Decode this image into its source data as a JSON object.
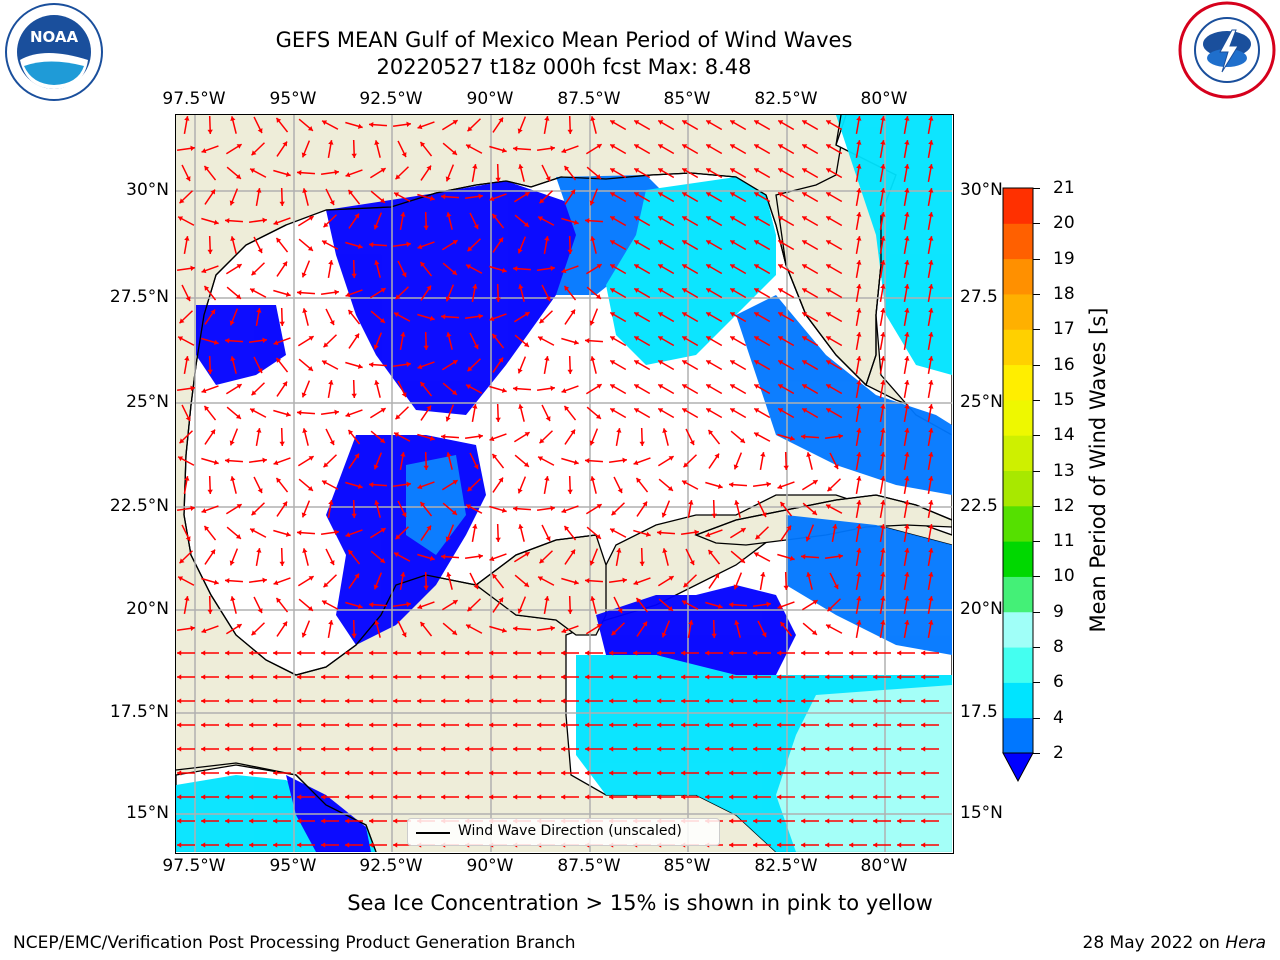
{
  "header": {
    "title_line1": "GEFS MEAN Gulf of Mexico Mean Period of Wind Waves",
    "title_line2": "20220527 t18z 000h fcst   Max: 8.48"
  },
  "logos": {
    "left": {
      "name": "NOAA",
      "ring_text": "NATIONAL OCEANIC AND ATMOSPHERIC ADMINISTRATION · U.S. DEPARTMENT OF COMMERCE",
      "colors": [
        "#1a4f9c",
        "#ffffff"
      ]
    },
    "right": {
      "name": "National Weather Service",
      "ring_text": "NATIONAL WEATHER SERVICE",
      "colors": [
        "#d6001c",
        "#1a4f9c"
      ]
    }
  },
  "map": {
    "lon_ticks": [
      "97.5°W",
      "95°W",
      "92.5°W",
      "90°W",
      "87.5°W",
      "85°W",
      "82.5°W",
      "80°W"
    ],
    "lat_ticks_left": [
      "30°N",
      "27.5°N",
      "25°N",
      "22.5°N",
      "20°N",
      "17.5°N",
      "15°N"
    ],
    "lat_ticks_right": [
      "30°N",
      "27.5",
      "25°N",
      "22.5",
      "20°N",
      "17.5",
      "15°N"
    ],
    "colors": {
      "land": "#eeedd9",
      "grid": "#b0b0b0",
      "coast": "#000000",
      "arrow": "#ff0000"
    },
    "legend_label": "Wind Wave Direction (unscaled)"
  },
  "colorbar": {
    "label": "Mean Period of Wind Waves [s]",
    "ticks": [
      "2",
      "4",
      "6",
      "8",
      "9",
      "10",
      "11",
      "12",
      "13",
      "14",
      "15",
      "16",
      "17",
      "18",
      "19",
      "20",
      "21"
    ],
    "colors": [
      "#0077ff",
      "#00e4ff",
      "#44fff0",
      "#a0fff8",
      "#44f077",
      "#00d800",
      "#55e000",
      "#a8e800",
      "#cef000",
      "#eef800",
      "#ffee00",
      "#ffd000",
      "#ffb000",
      "#ff9000",
      "#ff6000",
      "#ff3000"
    ],
    "below_color": "#0000ff"
  },
  "notes": {
    "sea_ice": "Sea Ice Concentration > 15% is shown in pink to yellow",
    "footer_left": "NCEP/EMC/Verification Post Processing Product Generation Branch",
    "footer_right_date": "28 May 2022 on",
    "footer_right_machine": "Hera"
  }
}
